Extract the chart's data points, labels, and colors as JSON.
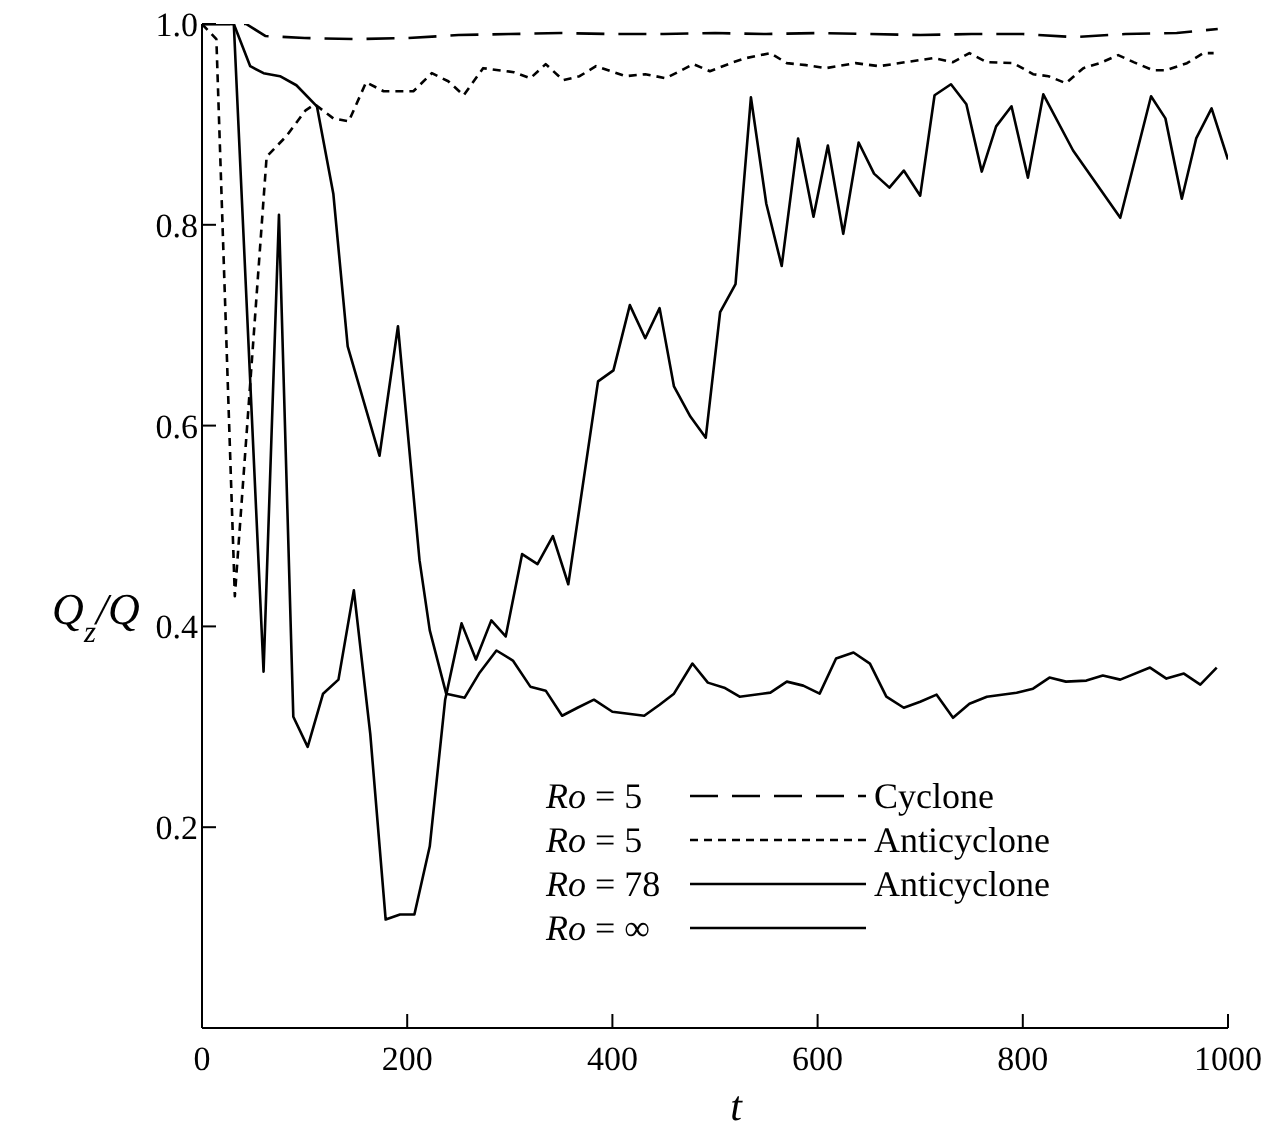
{
  "chart_data": {
    "type": "line",
    "xlabel": "t",
    "ylabel": "Q$_{z}$/Q",
    "xlim": [
      0,
      1000
    ],
    "xticks": [
      0,
      200,
      400,
      600,
      800,
      1000
    ],
    "ylim": [
      0,
      1
    ],
    "yticks": [
      0.2,
      0.4,
      0.6,
      0.8,
      {
        "value": 1,
        "label": "1.0"
      }
    ],
    "grid": false,
    "legend": "bottom right",
    "marker": "none",
    "series": [
      {
        "name": "Ro = 5 Cyclone",
        "color": "#000000",
        "line_style": "dashed",
        "x": [
          0,
          43,
          62,
          100,
          150,
          200,
          250,
          300,
          350,
          400,
          450,
          500,
          550,
          600,
          650,
          700,
          750,
          800,
          850,
          900,
          950,
          990
        ],
        "values": [
          1.0,
          1.0,
          0.988,
          0.986,
          0.985,
          0.986,
          0.989,
          0.99,
          0.991,
          0.99,
          0.99,
          0.991,
          0.99,
          0.991,
          0.99,
          0.989,
          0.99,
          0.99,
          0.987,
          0.99,
          0.991,
          0.995
        ]
      },
      {
        "name": "Ro = 5 Anticyclone",
        "color": "#000000",
        "line_style": "dotted",
        "x": [
          0,
          14,
          32,
          63,
          82,
          101,
          110,
          128,
          143,
          160,
          177,
          206,
          224,
          240,
          255,
          274,
          304,
          320,
          335,
          352,
          368,
          384,
          413,
          432,
          452,
          479,
          495,
          518,
          530,
          554,
          570,
          589,
          608,
          637,
          660,
          686,
          713,
          732,
          748,
          765,
          791,
          810,
          825,
          842,
          859,
          875,
          893,
          908,
          927,
          940,
          960,
          976,
          986
        ],
        "values": [
          1.0,
          0.985,
          0.43,
          0.868,
          0.888,
          0.914,
          0.92,
          0.906,
          0.903,
          0.942,
          0.933,
          0.933,
          0.951,
          0.943,
          0.929,
          0.956,
          0.952,
          0.946,
          0.96,
          0.944,
          0.948,
          0.958,
          0.948,
          0.95,
          0.946,
          0.96,
          0.953,
          0.962,
          0.966,
          0.971,
          0.961,
          0.959,
          0.956,
          0.961,
          0.958,
          0.962,
          0.966,
          0.962,
          0.971,
          0.962,
          0.961,
          0.95,
          0.948,
          0.941,
          0.956,
          0.961,
          0.969,
          0.962,
          0.954,
          0.954,
          0.961,
          0.971,
          0.971
        ]
      },
      {
        "name": "Ro = 78 Anticyclone",
        "color": "#000000",
        "line_style": "solid",
        "x": [
          0,
          31,
          60,
          75,
          89,
          103,
          118,
          133,
          148,
          164,
          179,
          193,
          207,
          222,
          237,
          253,
          267,
          282,
          296,
          312,
          327,
          342,
          357,
          386,
          401,
          417,
          432,
          446,
          460,
          476,
          491,
          505,
          520,
          535,
          550,
          565,
          581,
          596,
          610,
          625,
          640,
          655,
          670,
          684,
          700,
          714,
          730,
          745,
          760,
          774,
          789,
          805,
          820,
          849,
          895,
          925,
          939,
          955,
          969,
          984,
          1000
        ],
        "values": [
          1.0,
          1.0,
          0.355,
          0.81,
          0.31,
          0.28,
          0.333,
          0.347,
          0.436,
          0.293,
          0.108,
          0.113,
          0.113,
          0.181,
          0.327,
          0.403,
          0.367,
          0.406,
          0.39,
          0.472,
          0.462,
          0.49,
          0.442,
          0.644,
          0.655,
          0.72,
          0.687,
          0.717,
          0.639,
          0.609,
          0.588,
          0.713,
          0.741,
          0.927,
          0.821,
          0.759,
          0.886,
          0.808,
          0.879,
          0.791,
          0.882,
          0.851,
          0.837,
          0.854,
          0.829,
          0.929,
          0.94,
          0.92,
          0.853,
          0.898,
          0.918,
          0.847,
          0.93,
          0.874,
          0.807,
          0.928,
          0.906,
          0.826,
          0.886,
          0.916,
          0.865
        ]
      },
      {
        "name": "Ro = ∞",
        "color": "#000000",
        "line_style": "solid",
        "x": [
          0,
          31,
          47,
          60,
          76,
          92,
          112,
          128,
          142,
          173,
          191,
          212,
          222,
          238,
          256,
          270,
          287,
          303,
          320,
          335,
          351,
          366,
          382,
          400,
          431,
          446,
          460,
          478,
          493,
          509,
          524,
          554,
          570,
          586,
          602,
          618,
          635,
          651,
          667,
          684,
          700,
          716,
          732,
          748,
          765,
          794,
          810,
          826,
          842,
          862,
          878,
          895,
          924,
          940,
          957,
          973,
          989
        ],
        "values": [
          1.0,
          1.0,
          0.958,
          0.951,
          0.948,
          0.939,
          0.918,
          0.831,
          0.679,
          0.57,
          0.699,
          0.466,
          0.396,
          0.333,
          0.329,
          0.353,
          0.376,
          0.366,
          0.34,
          0.336,
          0.311,
          0.319,
          0.327,
          0.315,
          0.311,
          0.322,
          0.333,
          0.363,
          0.344,
          0.339,
          0.33,
          0.334,
          0.345,
          0.341,
          0.333,
          0.368,
          0.374,
          0.363,
          0.33,
          0.319,
          0.325,
          0.332,
          0.309,
          0.323,
          0.33,
          0.334,
          0.338,
          0.349,
          0.345,
          0.346,
          0.351,
          0.347,
          0.359,
          0.348,
          0.353,
          0.342,
          0.359
        ]
      }
    ]
  }
}
